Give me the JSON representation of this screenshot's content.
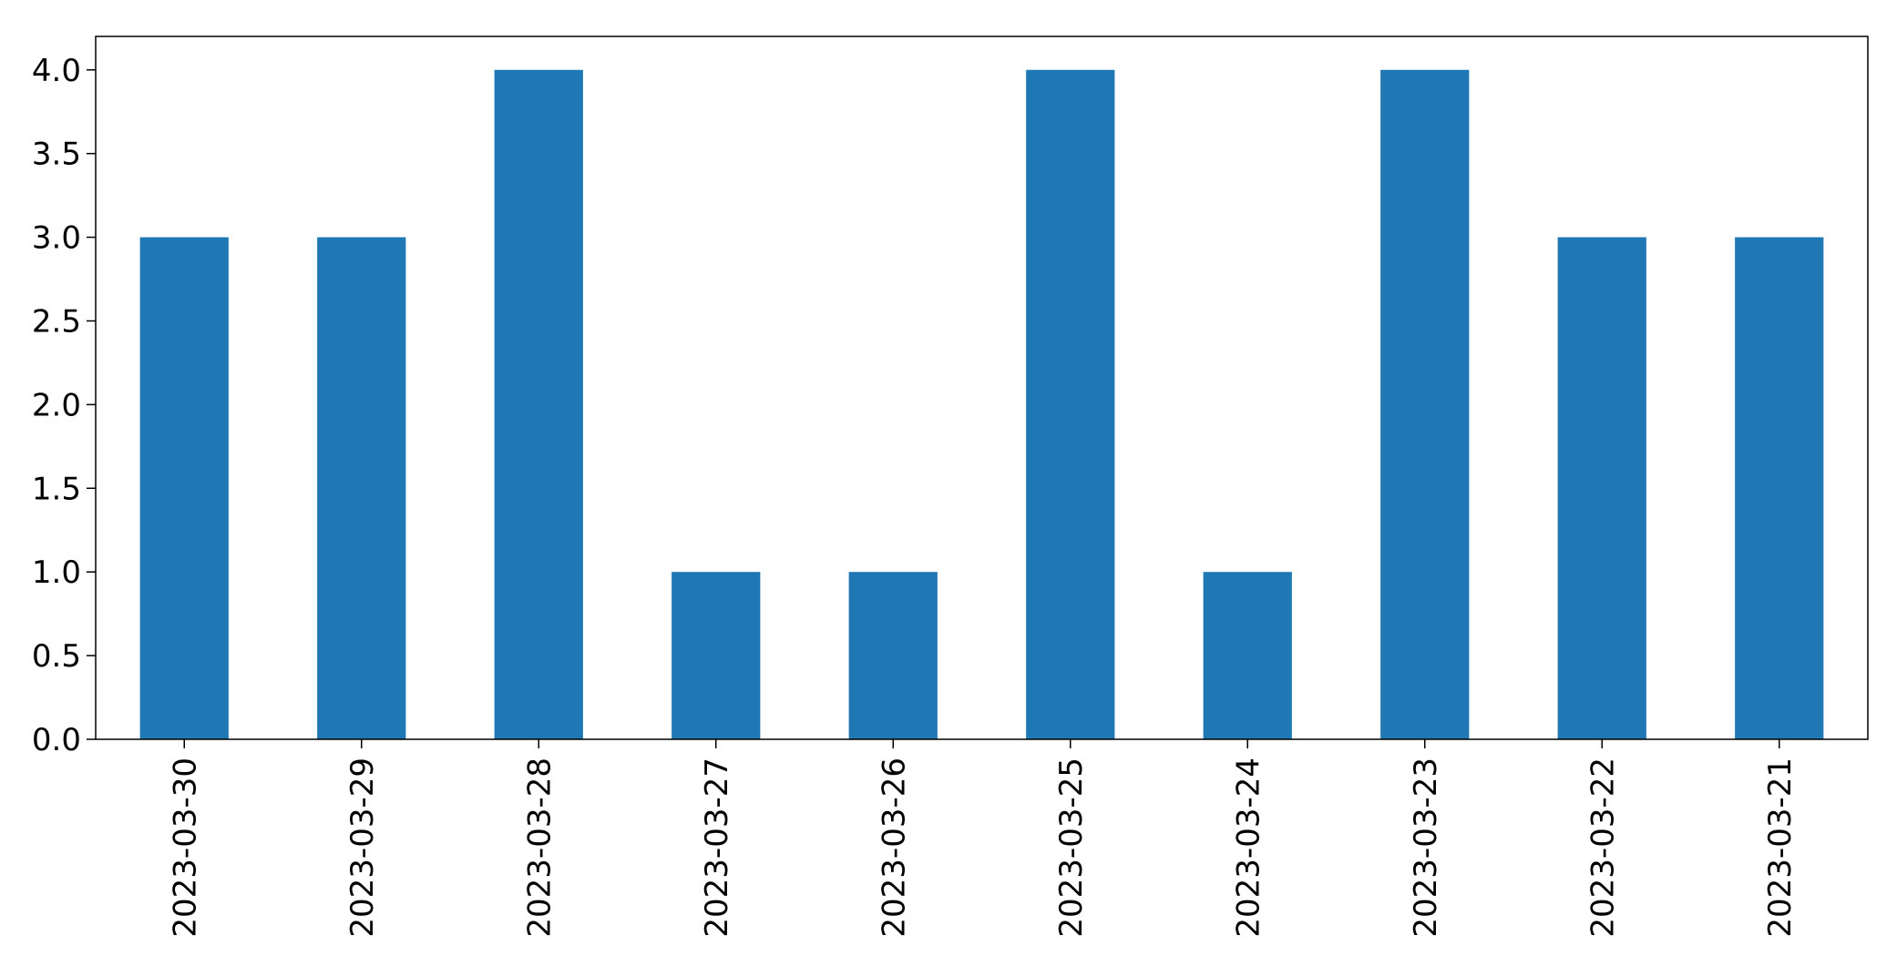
{
  "chart_data": {
    "type": "bar",
    "categories": [
      "2023-03-30",
      "2023-03-29",
      "2023-03-28",
      "2023-03-27",
      "2023-03-26",
      "2023-03-25",
      "2023-03-24",
      "2023-03-23",
      "2023-03-22",
      "2023-03-21"
    ],
    "values": [
      3,
      3,
      4,
      1,
      1,
      4,
      1,
      4,
      3,
      3
    ],
    "yticks": [
      "0.0",
      "0.5",
      "1.0",
      "1.5",
      "2.0",
      "2.5",
      "3.0",
      "3.5",
      "4.0"
    ],
    "ylim": [
      0,
      4.2
    ],
    "xlabel": "",
    "ylabel": "",
    "title": "",
    "grid": false,
    "bar_color": "#1f77b4",
    "axis_color": "#000000",
    "background": "#ffffff"
  }
}
